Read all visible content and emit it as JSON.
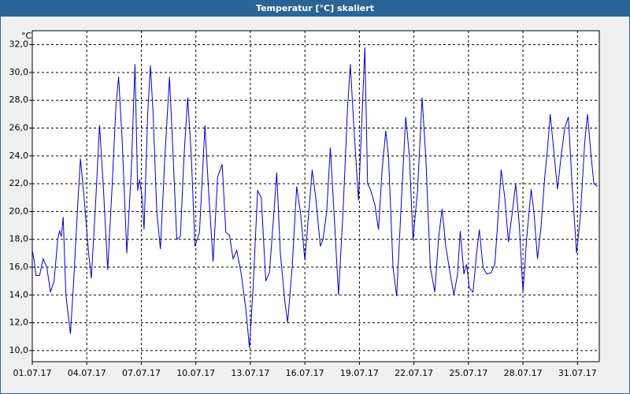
{
  "window_title": "Temperatur [°C] skaliert",
  "chart_data": {
    "type": "line",
    "y_unit": "°C",
    "color": "#0000cc",
    "grid": true,
    "xlim": [
      0,
      31.2
    ],
    "ylim": [
      9.2,
      33.0
    ],
    "xticks": [
      {
        "value": 0,
        "label": "01.07.17"
      },
      {
        "value": 3,
        "label": "04.07.17"
      },
      {
        "value": 6,
        "label": "07.07.17"
      },
      {
        "value": 9,
        "label": "10.07.17"
      },
      {
        "value": 12,
        "label": "13.07.17"
      },
      {
        "value": 15,
        "label": "16.07.17"
      },
      {
        "value": 18,
        "label": "19.07.17"
      },
      {
        "value": 21,
        "label": "22.07.17"
      },
      {
        "value": 24,
        "label": "25.07.17"
      },
      {
        "value": 27,
        "label": "28.07.17"
      },
      {
        "value": 30,
        "label": "31.07.17"
      }
    ],
    "yticks": [
      {
        "value": 10,
        "label": "10,0"
      },
      {
        "value": 12,
        "label": "12,0"
      },
      {
        "value": 14,
        "label": "14,0"
      },
      {
        "value": 16,
        "label": "16,0"
      },
      {
        "value": 18,
        "label": "18,0"
      },
      {
        "value": 20,
        "label": "20,0"
      },
      {
        "value": 22,
        "label": "22,0"
      },
      {
        "value": 24,
        "label": "24,0"
      },
      {
        "value": 26,
        "label": "26,0"
      },
      {
        "value": 28,
        "label": "28,0"
      },
      {
        "value": 30,
        "label": "30,0"
      },
      {
        "value": 32,
        "label": "32,0"
      }
    ],
    "x": [
      0,
      0.1,
      0.2,
      0.4,
      0.6,
      0.8,
      1.0,
      1.2,
      1.4,
      1.5,
      1.6,
      1.7,
      1.85,
      2.1,
      2.3,
      2.5,
      2.65,
      2.85,
      3.1,
      3.25,
      3.5,
      3.7,
      3.9,
      4.15,
      4.4,
      4.6,
      4.75,
      4.95,
      5.2,
      5.45,
      5.65,
      5.8,
      5.9,
      6.05,
      6.15,
      6.35,
      6.5,
      6.65,
      6.85,
      7.05,
      7.3,
      7.55,
      7.75,
      7.95,
      8.15,
      8.35,
      8.55,
      8.75,
      8.95,
      9.2,
      9.5,
      9.7,
      9.95,
      10.2,
      10.45,
      10.65,
      10.85,
      11.05,
      11.25,
      11.5,
      11.75,
      11.95,
      12.15,
      12.4,
      12.6,
      12.85,
      13.05,
      13.3,
      13.45,
      13.65,
      13.9,
      14.05,
      14.3,
      14.55,
      14.75,
      15.0,
      15.25,
      15.4,
      15.6,
      15.85,
      16.0,
      16.2,
      16.4,
      16.6,
      16.85,
      17.1,
      17.35,
      17.5,
      17.7,
      17.95,
      18.15,
      18.3,
      18.45,
      18.6,
      18.85,
      19.05,
      19.25,
      19.45,
      19.6,
      19.85,
      20.05,
      20.3,
      20.55,
      20.75,
      20.95,
      21.2,
      21.45,
      21.65,
      21.9,
      22.15,
      22.35,
      22.55,
      22.75,
      23.0,
      23.2,
      23.4,
      23.55,
      23.75,
      23.9,
      24.05,
      24.25,
      24.45,
      24.6,
      24.8,
      25.0,
      25.25,
      25.45,
      25.6,
      25.8,
      26.0,
      26.2,
      26.4,
      26.6,
      26.8,
      27.0,
      27.2,
      27.45,
      27.6,
      27.8,
      28.0,
      28.2,
      28.35,
      28.5,
      28.65,
      28.9,
      29.1,
      29.3,
      29.5,
      29.7,
      29.95,
      30.15,
      30.4,
      30.55,
      30.75,
      30.9,
      31.1
    ],
    "values": [
      17.2,
      16.5,
      15.4,
      15.4,
      16.6,
      16.0,
      14.2,
      15.0,
      18.0,
      18.6,
      18.2,
      19.6,
      14.0,
      11.2,
      15.5,
      20.5,
      23.8,
      21.0,
      17.0,
      15.2,
      21.0,
      26.2,
      22.0,
      15.8,
      22.0,
      27.5,
      29.7,
      25.0,
      17.0,
      23.0,
      30.6,
      21.5,
      22.3,
      21.0,
      18.7,
      27.0,
      30.5,
      27.0,
      20.0,
      17.3,
      24.0,
      29.7,
      24.0,
      18.0,
      18.2,
      24.0,
      28.2,
      24.0,
      17.5,
      18.5,
      26.2,
      21.5,
      16.4,
      22.5,
      23.4,
      18.5,
      18.3,
      16.6,
      17.2,
      15.5,
      13.0,
      10.2,
      14.5,
      21.5,
      21.0,
      15.0,
      15.6,
      20.0,
      22.8,
      17.0,
      13.5,
      12.0,
      16.0,
      21.8,
      20.0,
      16.5,
      20.5,
      23.0,
      21.0,
      17.5,
      18.0,
      20.0,
      24.6,
      20.0,
      14.0,
      20.0,
      27.5,
      30.6,
      26.0,
      20.8,
      27.0,
      31.8,
      22.0,
      21.6,
      20.5,
      18.7,
      23.0,
      25.8,
      24.0,
      16.0,
      13.9,
      20.5,
      26.8,
      24.0,
      18.0,
      21.5,
      28.2,
      24.0,
      16.0,
      14.2,
      18.0,
      20.2,
      17.5,
      15.5,
      14.0,
      15.5,
      18.6,
      15.5,
      16.2,
      14.5,
      14.2,
      17.0,
      18.7,
      16.0,
      15.5,
      15.6,
      16.2,
      19.0,
      23.0,
      21.0,
      17.8,
      19.8,
      22.0,
      19.0,
      14.2,
      18.0,
      21.6,
      20.0,
      16.6,
      19.0,
      22.5,
      24.5,
      27.0,
      25.0,
      21.6,
      24.0,
      26.0,
      26.8,
      22.0,
      17.0,
      19.5,
      25.0,
      27.0,
      24.0,
      22.0,
      21.8
    ]
  }
}
